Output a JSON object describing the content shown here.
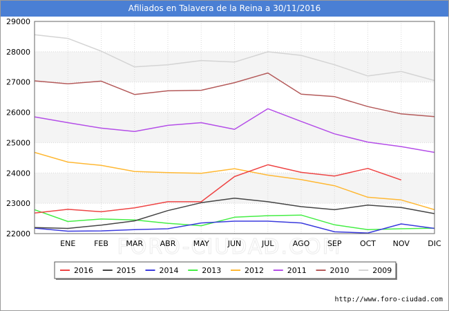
{
  "title": "Afiliados en Talavera de la Reina a 30/11/2016",
  "source": "http://www.foro-ciudad.com",
  "watermark": "FORO-CIUDAD.COM",
  "chart_data": {
    "type": "line",
    "categories": [
      "",
      "ENE",
      "FEB",
      "MAR",
      "ABR",
      "MAY",
      "JUN",
      "JUL",
      "AGO",
      "SEP",
      "OCT",
      "NOV",
      "DIC"
    ],
    "ylim": [
      22000,
      29000
    ],
    "yticks": [
      22000,
      23000,
      24000,
      25000,
      26000,
      27000,
      28000,
      29000
    ],
    "grid": true,
    "legend_position": "bottom",
    "series": [
      {
        "name": "2016",
        "color": "#ee4444",
        "values": [
          22680,
          22800,
          22720,
          22850,
          23050,
          23050,
          23880,
          24270,
          24020,
          23900,
          24150,
          23770,
          null
        ]
      },
      {
        "name": "2015",
        "color": "#444444",
        "values": [
          22200,
          22170,
          22280,
          22420,
          22760,
          23020,
          23170,
          23050,
          22890,
          22790,
          22940,
          22860,
          22660
        ]
      },
      {
        "name": "2014",
        "color": "#3a3add",
        "values": [
          22180,
          22080,
          22090,
          22130,
          22160,
          22350,
          22410,
          22410,
          22350,
          22060,
          22020,
          22320,
          22170
        ]
      },
      {
        "name": "2013",
        "color": "#44ee44",
        "values": [
          22790,
          22400,
          22480,
          22450,
          22340,
          22260,
          22540,
          22590,
          22610,
          22290,
          22130,
          22160,
          22180
        ]
      },
      {
        "name": "2012",
        "color": "#ffb833",
        "values": [
          24680,
          24360,
          24250,
          24050,
          24010,
          23990,
          24140,
          23930,
          23780,
          23580,
          23200,
          23110,
          22790
        ]
      },
      {
        "name": "2011",
        "color": "#b44ee8",
        "values": [
          25850,
          25660,
          25480,
          25370,
          25570,
          25660,
          25440,
          26120,
          25700,
          25290,
          25020,
          24870,
          24680
        ]
      },
      {
        "name": "2010",
        "color": "#b45a5a",
        "values": [
          27040,
          26940,
          27030,
          26590,
          26710,
          26730,
          26980,
          27300,
          26600,
          26520,
          26190,
          25950,
          25860
        ]
      },
      {
        "name": "2009",
        "color": "#d4d4d4",
        "values": [
          28560,
          28440,
          28020,
          27500,
          27570,
          27710,
          27660,
          28000,
          27880,
          27570,
          27200,
          27350,
          27050
        ]
      }
    ]
  }
}
